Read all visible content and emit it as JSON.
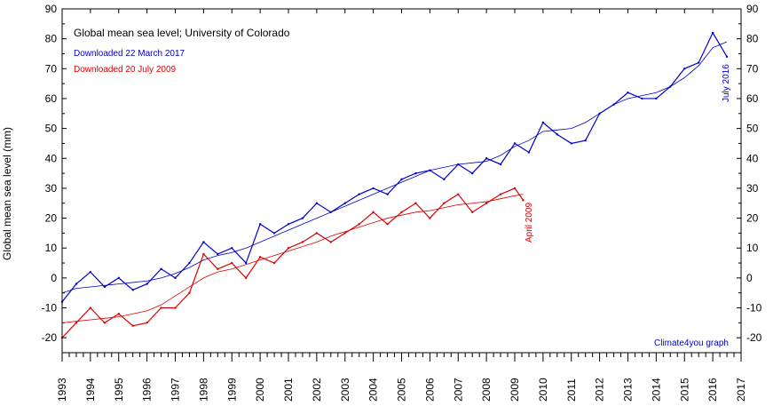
{
  "chart_data": {
    "type": "line",
    "title": "Global mean sea level; University of Colorado",
    "ylabel": "Global mean sea level (mm)",
    "xlabel": "",
    "xlim": [
      1993,
      2017
    ],
    "ylim": [
      -25,
      90
    ],
    "y_ticks": [
      -20,
      -10,
      0,
      10,
      20,
      30,
      40,
      50,
      60,
      70,
      80,
      90
    ],
    "y_tick_labels": [
      "-20",
      "-10",
      "0",
      "10",
      "20",
      "30",
      "40",
      "50",
      "60",
      "70",
      "80",
      "90"
    ],
    "x_tick_labels": [
      "1993",
      "1994",
      "1995",
      "1996",
      "1997",
      "1998",
      "1999",
      "2000",
      "2001",
      "2002",
      "2003",
      "2004",
      "2005",
      "2006",
      "2007",
      "2008",
      "2009",
      "2010",
      "2011",
      "2012",
      "2013",
      "2014",
      "2015",
      "2016",
      "2017"
    ],
    "grid": false,
    "legend_position": "top-left",
    "annotations": {
      "july_2016": "July 2016",
      "april_2009": "April 2009",
      "credit": "Climate4you graph"
    },
    "series": [
      {
        "name": "Downloaded 22 March 2017",
        "color": "#0000cc",
        "x": [
          1993.0,
          1993.5,
          1994.0,
          1994.5,
          1995.0,
          1995.5,
          1996.0,
          1996.5,
          1997.0,
          1997.5,
          1998.0,
          1998.5,
          1999.0,
          1999.5,
          2000.0,
          2000.5,
          2001.0,
          2001.5,
          2002.0,
          2002.5,
          2003.0,
          2003.5,
          2004.0,
          2004.5,
          2005.0,
          2005.5,
          2006.0,
          2006.5,
          2007.0,
          2007.5,
          2008.0,
          2008.5,
          2009.0,
          2009.5,
          2010.0,
          2010.5,
          2011.0,
          2011.5,
          2012.0,
          2012.5,
          2013.0,
          2013.5,
          2014.0,
          2014.5,
          2015.0,
          2015.5,
          2016.0,
          2016.5
        ],
        "values": [
          -8,
          -2,
          2,
          -3,
          0,
          -4,
          -2,
          3,
          0,
          5,
          12,
          8,
          10,
          5,
          18,
          15,
          18,
          20,
          25,
          22,
          25,
          28,
          30,
          28,
          33,
          35,
          36,
          33,
          38,
          35,
          40,
          38,
          45,
          42,
          52,
          48,
          45,
          46,
          55,
          58,
          62,
          60,
          60,
          64,
          70,
          72,
          82,
          74
        ],
        "trend": [
          -5,
          -3.5,
          -3,
          -2.5,
          -2,
          -1.5,
          -1,
          0,
          1.5,
          3.5,
          6,
          7.5,
          8.5,
          10,
          12,
          14,
          16,
          18,
          20,
          22,
          24,
          26,
          28,
          30,
          32,
          34,
          36,
          37,
          38,
          38.5,
          39,
          41,
          44,
          46,
          49,
          49.5,
          50,
          52,
          55,
          58,
          60,
          61,
          62,
          64,
          67,
          71,
          77,
          79
        ]
      },
      {
        "name": "Downloaded 20 July 2009",
        "color": "#dd0000",
        "x": [
          1993.0,
          1993.5,
          1994.0,
          1994.5,
          1995.0,
          1995.5,
          1996.0,
          1996.5,
          1997.0,
          1997.5,
          1998.0,
          1998.5,
          1999.0,
          1999.5,
          2000.0,
          2000.5,
          2001.0,
          2001.5,
          2002.0,
          2002.5,
          2003.0,
          2003.5,
          2004.0,
          2004.5,
          2005.0,
          2005.5,
          2006.0,
          2006.5,
          2007.0,
          2007.5,
          2008.0,
          2008.5,
          2009.0,
          2009.3
        ],
        "values": [
          -20,
          -15,
          -10,
          -15,
          -12,
          -16,
          -15,
          -10,
          -10,
          -5,
          8,
          3,
          5,
          0,
          7,
          5,
          10,
          12,
          15,
          12,
          15,
          18,
          22,
          18,
          22,
          25,
          20,
          25,
          28,
          22,
          25,
          28,
          30,
          26
        ],
        "trend": [
          -15,
          -14.5,
          -14,
          -13.5,
          -13,
          -12,
          -11,
          -9,
          -6,
          -3,
          0,
          2,
          3,
          4.5,
          6,
          7.5,
          9,
          10.5,
          12,
          14,
          15.5,
          17,
          18.5,
          20,
          21,
          22,
          22.5,
          23.5,
          24.5,
          25,
          25.5,
          26.5,
          27.5,
          28
        ]
      }
    ]
  }
}
